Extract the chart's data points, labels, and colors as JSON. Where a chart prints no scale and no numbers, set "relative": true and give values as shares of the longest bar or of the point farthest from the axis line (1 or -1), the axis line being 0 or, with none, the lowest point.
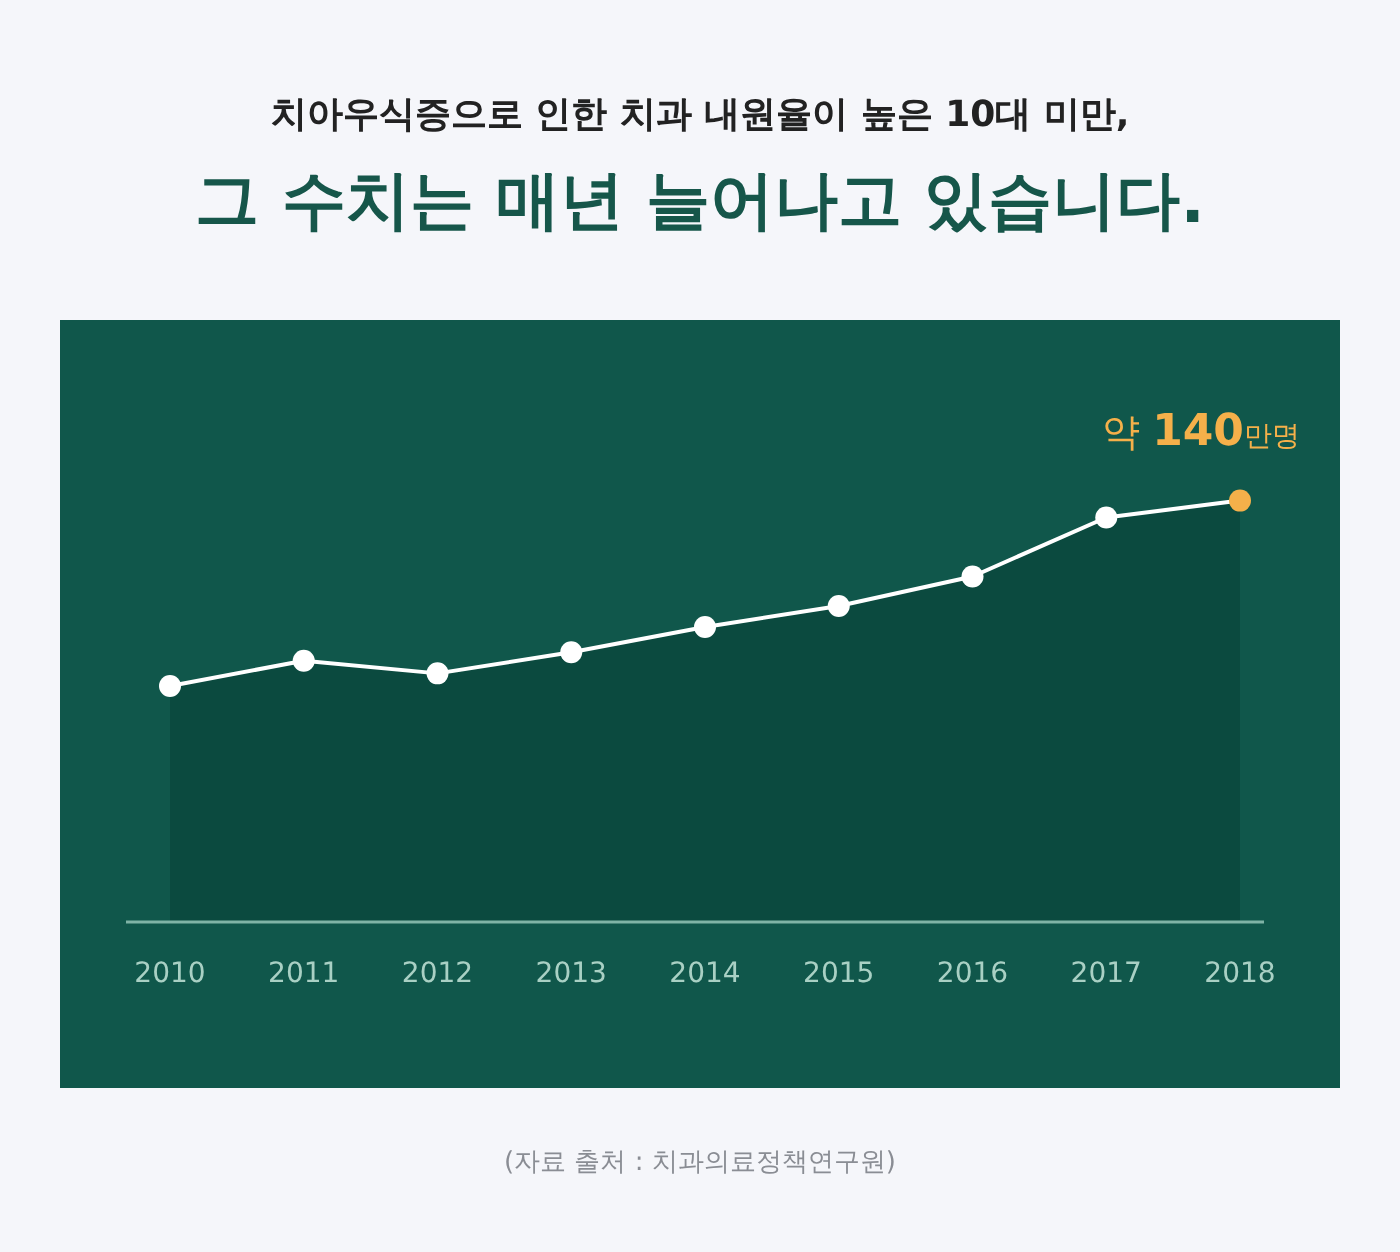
{
  "chart_data": {
    "type": "area",
    "subtitle": "치아우식증으로 인한 치과 내원율이 높은 10대 미만,",
    "title": "그 수치는 매년 늘어나고 있습니다.",
    "categories": [
      "2010",
      "2011",
      "2012",
      "2013",
      "2014",
      "2015",
      "2016",
      "2017",
      "2018"
    ],
    "values": [
      0.56,
      0.62,
      0.59,
      0.64,
      0.7,
      0.75,
      0.82,
      0.96,
      1
    ],
    "relative": true,
    "tick_labels": "x",
    "color": "#ffffff",
    "colors": [
      "#ffffff",
      "#ffffff",
      "#ffffff",
      "#ffffff",
      "#ffffff",
      "#ffffff",
      "#ffffff",
      "#ffffff",
      "#f5b04a"
    ],
    "marker": "circle",
    "line_style": "solid",
    "annotations": [
      {
        "text": "약 140만명",
        "x": "2018",
        "y": 1
      },
      "(자료 출처 : 치과의료정책연구원)"
    ]
  }
}
